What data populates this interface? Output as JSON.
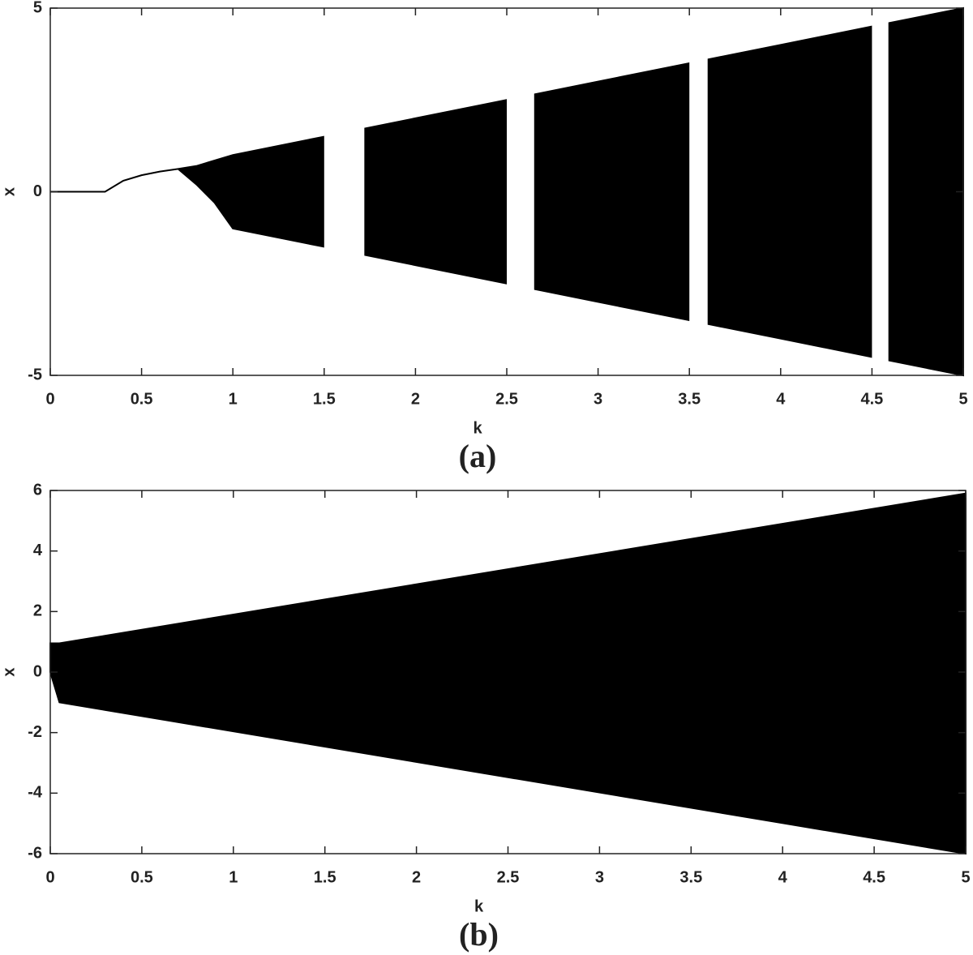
{
  "chart_data": [
    {
      "type": "band",
      "xlabel": "k",
      "ylabel": "x",
      "caption": "(a)",
      "x": [
        0,
        0.3,
        0.4,
        0.5,
        0.6,
        0.7,
        0.8,
        0.9,
        1,
        1.5,
        2,
        2.5,
        3,
        3.5,
        4,
        4.5,
        5
      ],
      "series": [
        {
          "color": "#000000",
          "values": [
            0,
            0,
            0.3,
            0.45,
            0.55,
            0.62,
            0.7,
            0.85,
            1,
            1.5,
            2,
            2.5,
            3,
            3.5,
            4,
            4.5,
            5
          ]
        },
        {
          "color": "#000000",
          "values": [
            0,
            0,
            0.3,
            0.45,
            0.55,
            0.62,
            0.2,
            -0.3,
            -1,
            -1.5,
            -2,
            -2.5,
            -3,
            -3.5,
            -4,
            -4.5,
            -5
          ]
        }
      ],
      "windows": [
        [
          1.5,
          1.72
        ],
        [
          2.5,
          2.65
        ],
        [
          3.5,
          3.6
        ],
        [
          4.5,
          4.59
        ]
      ],
      "xlim": [
        0,
        5
      ],
      "ylim": [
        -5,
        5
      ],
      "xticks": [
        0,
        0.5,
        1,
        1.5,
        2,
        2.5,
        3,
        3.5,
        4,
        4.5,
        5
      ],
      "yticks": [
        -5,
        0,
        5
      ]
    },
    {
      "type": "band",
      "xlabel": "k",
      "ylabel": "x",
      "caption": "(b)",
      "x": [
        0,
        0.05,
        5
      ],
      "series": [
        {
          "color": "#000000",
          "values": [
            0.95,
            0.95,
            5.9
          ]
        },
        {
          "color": "#000000",
          "values": [
            0,
            -1,
            -6
          ]
        }
      ],
      "windows": [],
      "xlim": [
        0,
        5
      ],
      "ylim": [
        -6,
        6
      ],
      "xticks": [
        0,
        0.5,
        1,
        1.5,
        2,
        2.5,
        3,
        3.5,
        4,
        4.5,
        5
      ],
      "yticks": [
        -6,
        -4,
        -2,
        0,
        2,
        4,
        6
      ]
    }
  ]
}
